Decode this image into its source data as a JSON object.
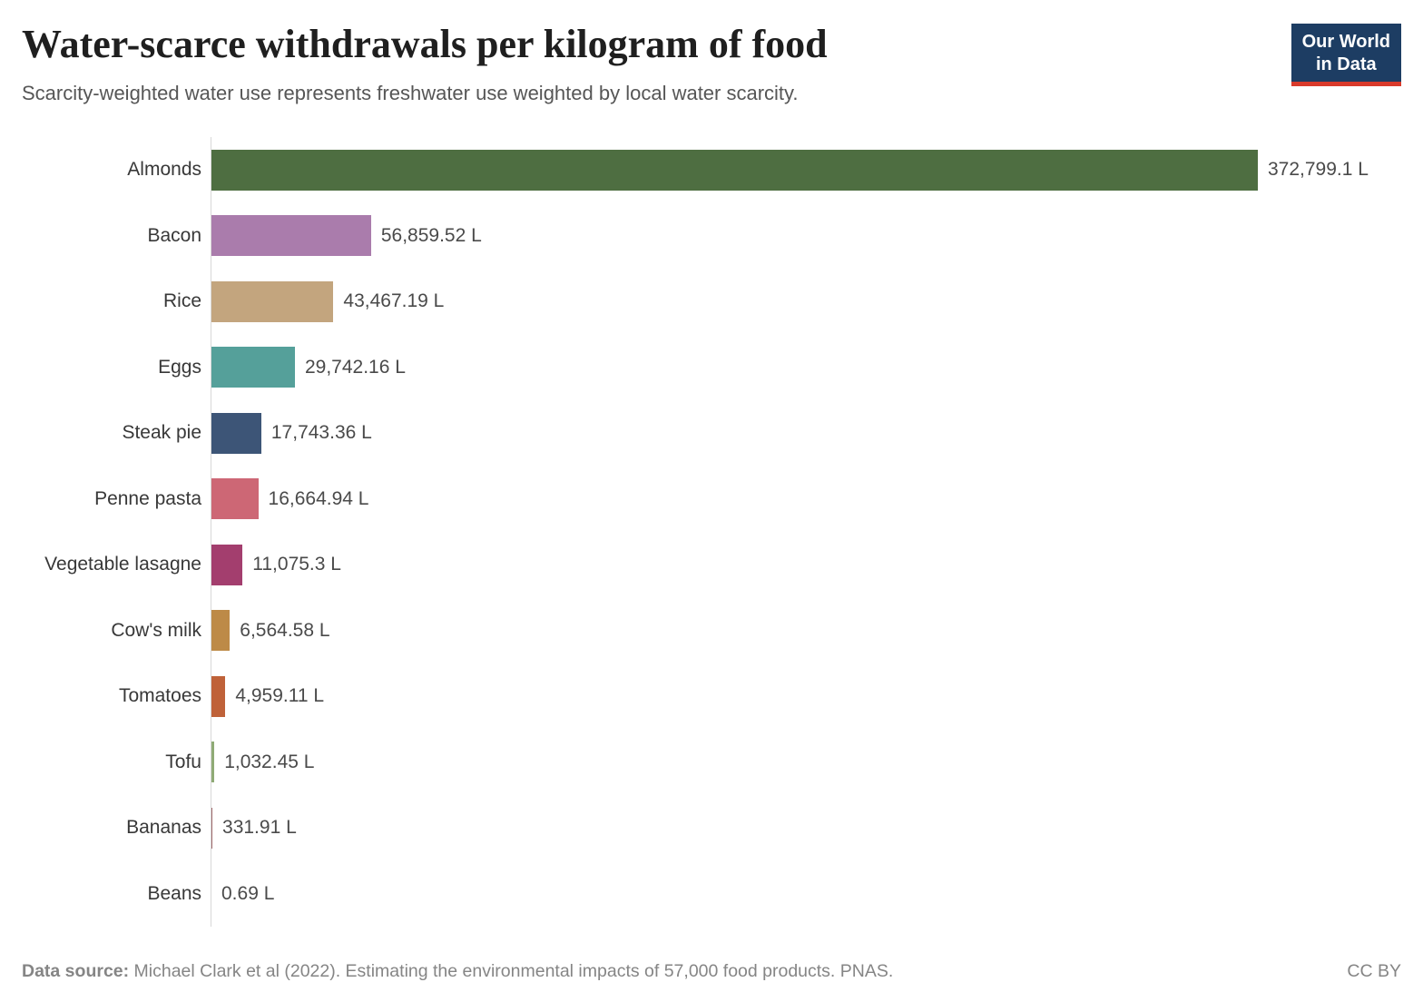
{
  "header": {
    "title": "Water-scarce withdrawals per kilogram of food",
    "subtitle": "Scarcity-weighted water use represents freshwater use weighted by local water scarcity.",
    "logo_line1": "Our World",
    "logo_line2": "in Data",
    "logo_bg_color": "#1d3d63",
    "logo_accent_color": "#d93a2b"
  },
  "chart_data": {
    "type": "bar",
    "orientation": "horizontal",
    "title": "Water-scarce withdrawals per kilogram of food",
    "xlabel": "",
    "ylabel": "",
    "unit": "L",
    "grid": false,
    "legend": false,
    "xlim": [
      0,
      372799.1
    ],
    "categories": [
      "Almonds",
      "Bacon",
      "Rice",
      "Eggs",
      "Steak pie",
      "Penne pasta",
      "Vegetable lasagne",
      "Cow's milk",
      "Tomatoes",
      "Tofu",
      "Bananas",
      "Beans"
    ],
    "values": [
      372799.1,
      56859.52,
      43467.19,
      29742.16,
      17743.36,
      16664.94,
      11075.3,
      6564.58,
      4959.11,
      1032.45,
      331.91,
      0.69
    ],
    "value_labels": [
      "372,799.1 L",
      "56,859.52 L",
      "43,467.19 L",
      "29,742.16 L",
      "17,743.36 L",
      "16,664.94 L",
      "11,075.3 L",
      "6,564.58 L",
      "4,959.11 L",
      "1,032.45 L",
      "331.91 L",
      "0.69 L"
    ],
    "bar_colors": [
      "#4e6e41",
      "#aa7cac",
      "#c3a57e",
      "#55a09a",
      "#3d5577",
      "#cd6775",
      "#a33e6e",
      "#bd8a47",
      "#bf6239",
      "#8fab76",
      "#a06a6c",
      "#8f6a6c"
    ]
  },
  "footer": {
    "source_label": "Data source:",
    "source_text": " Michael Clark et al (2022). Estimating the environmental impacts of 57,000 food products. PNAS.",
    "license": "CC BY"
  }
}
